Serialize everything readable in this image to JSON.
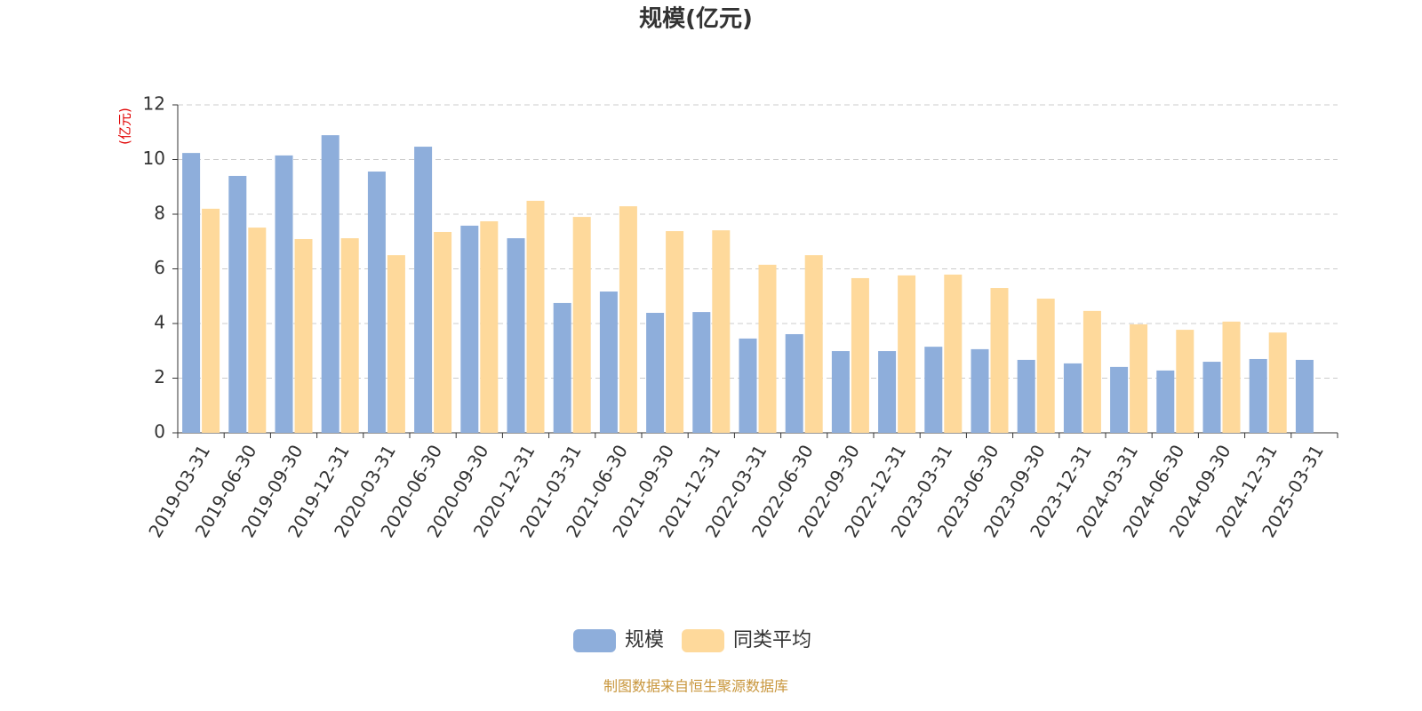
{
  "chart_data": {
    "type": "bar",
    "title": "规模(亿元)",
    "y_label": "(亿元)",
    "categories": [
      "2019-03-31",
      "2019-06-30",
      "2019-09-30",
      "2019-12-31",
      "2020-03-31",
      "2020-06-30",
      "2020-09-30",
      "2020-12-31",
      "2021-03-31",
      "2021-06-30",
      "2021-09-30",
      "2021-12-31",
      "2022-03-31",
      "2022-06-30",
      "2022-09-30",
      "2022-12-31",
      "2023-03-31",
      "2023-06-30",
      "2023-09-30",
      "2023-12-31",
      "2024-03-31",
      "2024-06-30",
      "2024-09-30",
      "2024-12-31",
      "2025-03-31"
    ],
    "series": [
      {
        "name": "规模",
        "color": "#8eaedb",
        "values": [
          10.24,
          9.4,
          10.15,
          10.89,
          9.56,
          10.47,
          7.58,
          7.12,
          4.75,
          5.17,
          4.39,
          4.42,
          3.45,
          3.61,
          2.99,
          2.99,
          3.15,
          3.06,
          2.67,
          2.54,
          2.41,
          2.28,
          2.6,
          2.7,
          2.67
        ]
      },
      {
        "name": "同类平均",
        "color": "#fed99b",
        "values": [
          8.2,
          7.51,
          7.09,
          7.12,
          6.5,
          7.35,
          7.74,
          8.49,
          7.9,
          8.29,
          7.38,
          7.41,
          6.15,
          6.5,
          5.66,
          5.76,
          5.79,
          5.3,
          4.91,
          4.46,
          3.97,
          3.77,
          4.07,
          3.67,
          null
        ]
      }
    ],
    "ylim": [
      0,
      12
    ],
    "yticks": [
      0,
      2,
      4,
      6,
      8,
      10,
      12
    ],
    "grid": true,
    "legend": "bottom",
    "source": "制图数据来自恒生聚源数据库"
  }
}
